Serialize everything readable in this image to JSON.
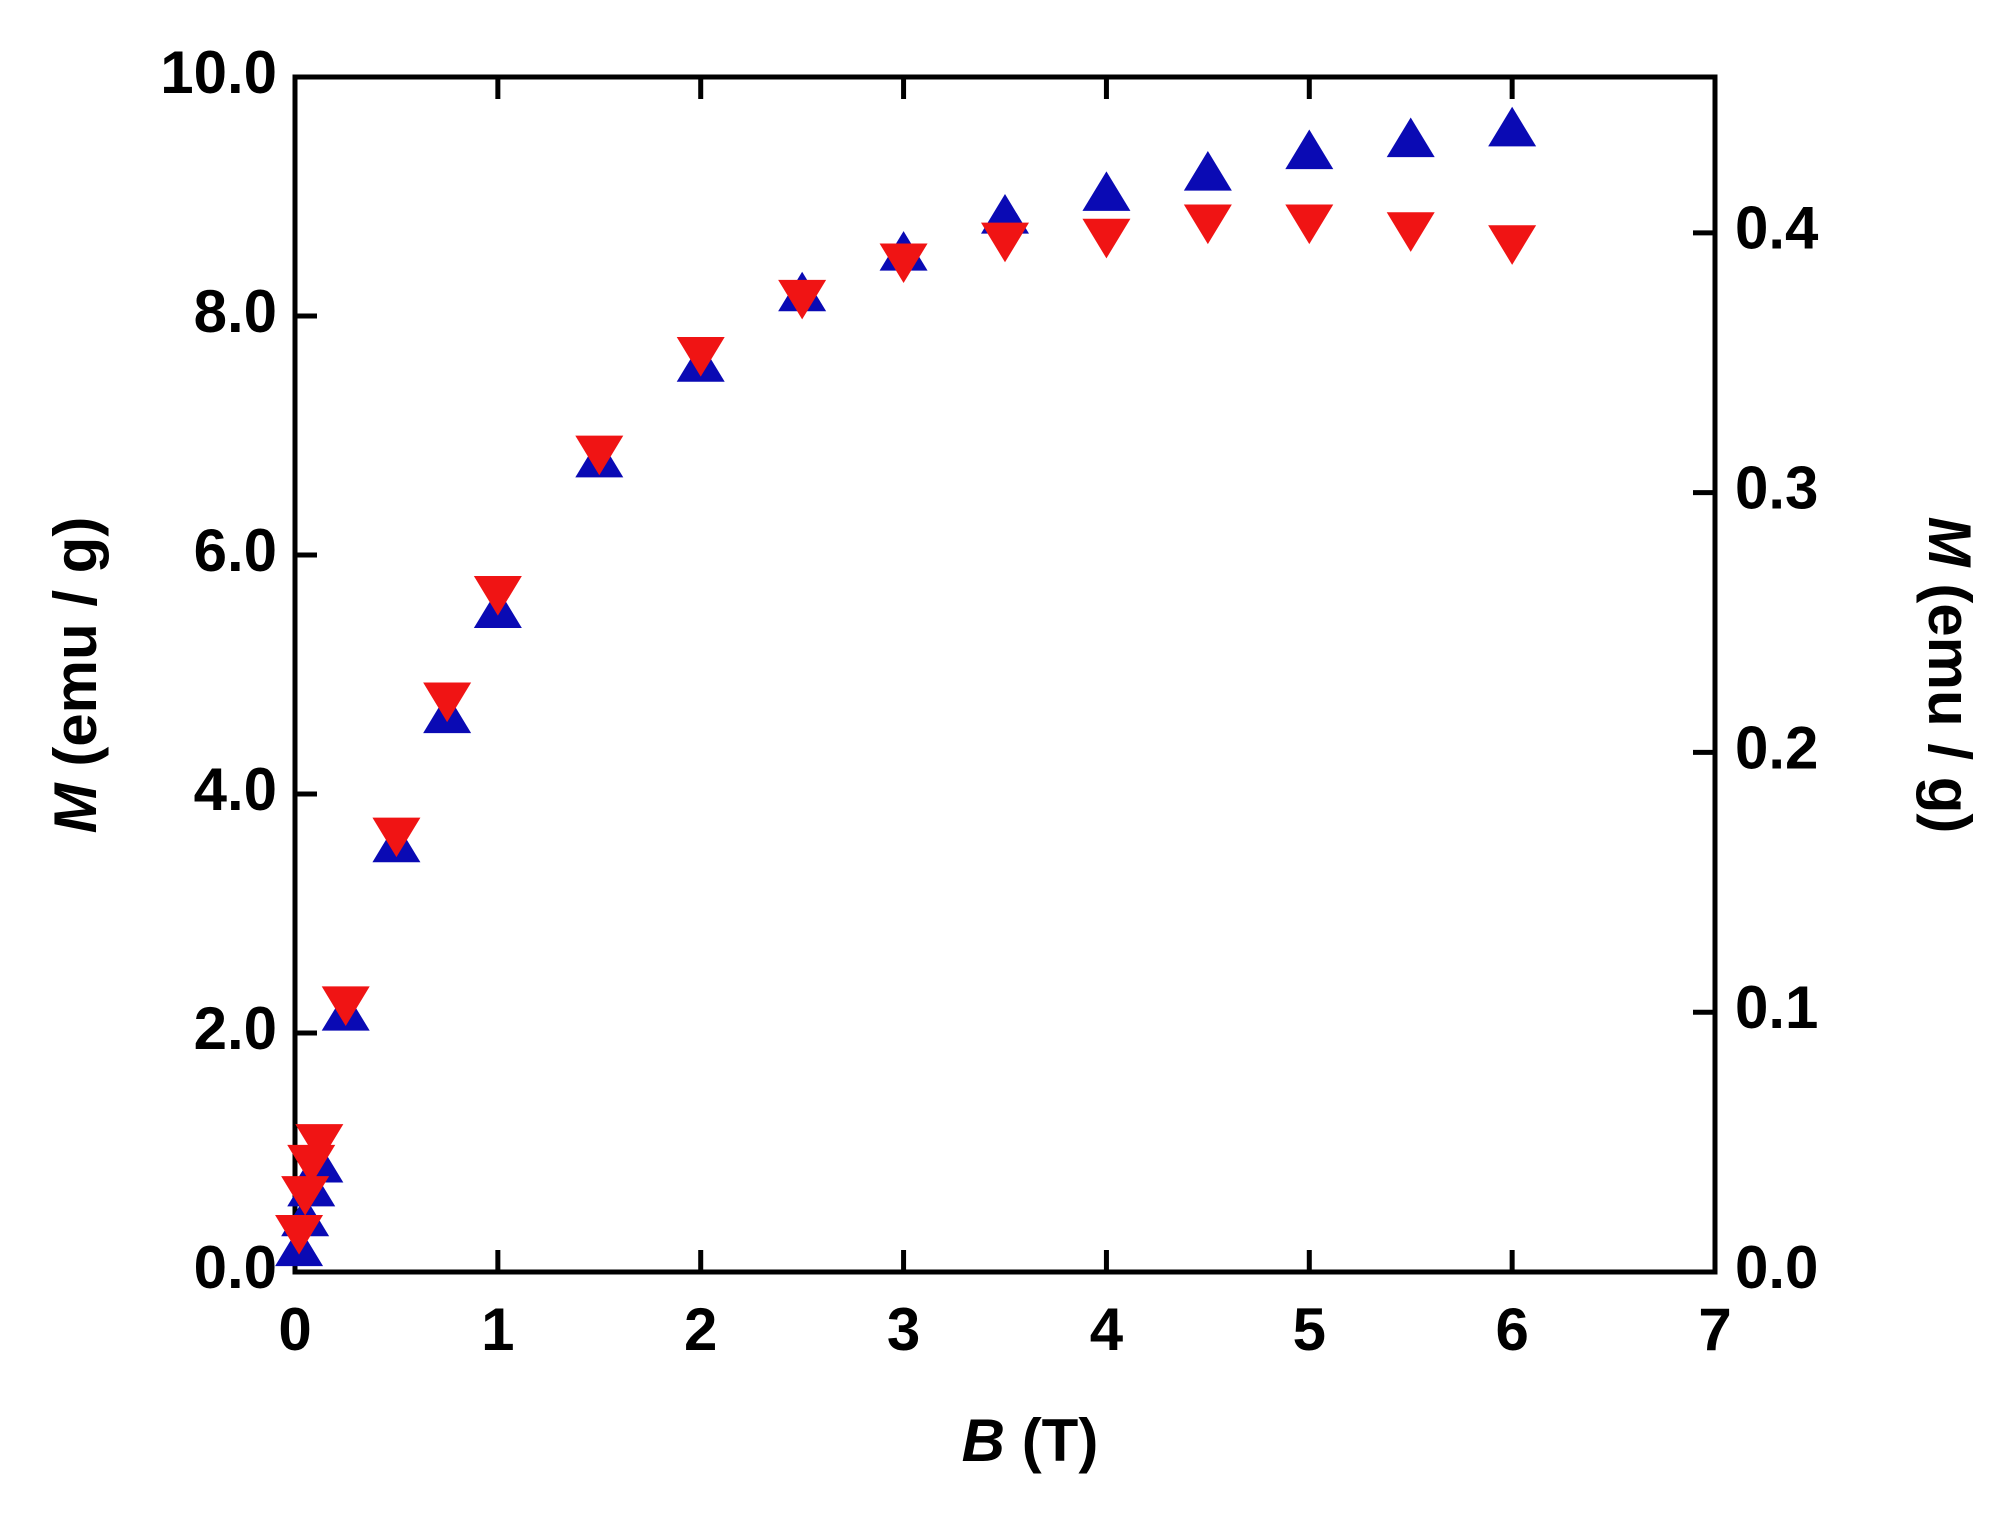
{
  "chart_data": {
    "type": "scatter",
    "x_label_symbol": "B",
    "x_label_unit": "(T)",
    "y_label_symbol": "M",
    "y_label_unit": "(emu / g)",
    "y2_label_symbol": "M",
    "y2_label_unit": "(emu / g)",
    "xlim": [
      0,
      7
    ],
    "xticks": [
      0,
      1,
      2,
      3,
      4,
      5,
      6,
      7
    ],
    "ylim": [
      0,
      10
    ],
    "yticks": [
      {
        "value": 0,
        "label": "0.0"
      },
      {
        "value": 2,
        "label": "2.0"
      },
      {
        "value": 4,
        "label": "4.0"
      },
      {
        "value": 6,
        "label": "6.0"
      },
      {
        "value": 8,
        "label": "8.0"
      },
      {
        "value": 10,
        "label": "10.0"
      }
    ],
    "y2lim": [
      0,
      0.46
    ],
    "y2ticks": [
      {
        "value": 0,
        "label": "0.0"
      },
      0.1,
      0.2,
      0.3,
      0.4
    ],
    "series": [
      {
        "marker": "triangle-up",
        "color": "#0a0ab4",
        "axis": "y",
        "x": [
          0.02,
          0.05,
          0.08,
          0.12,
          0.25,
          0.5,
          0.75,
          1,
          1.5,
          2,
          2.5,
          3,
          3.5,
          4,
          4.5,
          5,
          5.5,
          6
        ],
        "values": [
          0.2,
          0.45,
          0.7,
          0.9,
          2.17,
          3.58,
          4.66,
          5.54,
          6.8,
          7.6,
          8.19,
          8.53,
          8.84,
          9.03,
          9.2,
          9.38,
          9.48,
          9.57
        ]
      },
      {
        "marker": "triangle-down",
        "color": "#f01414",
        "axis": "y2",
        "x": [
          0.02,
          0.05,
          0.08,
          0.12,
          0.25,
          0.5,
          0.75,
          1,
          1.5,
          2,
          2.5,
          3,
          3.5,
          4,
          4.5,
          5,
          5.5,
          6
        ],
        "values": [
          0.015,
          0.03,
          0.042,
          0.05,
          0.103,
          0.168,
          0.22,
          0.261,
          0.315,
          0.353,
          0.375,
          0.389,
          0.397,
          0.3985,
          0.404,
          0.404,
          0.401,
          0.396
        ]
      }
    ]
  }
}
